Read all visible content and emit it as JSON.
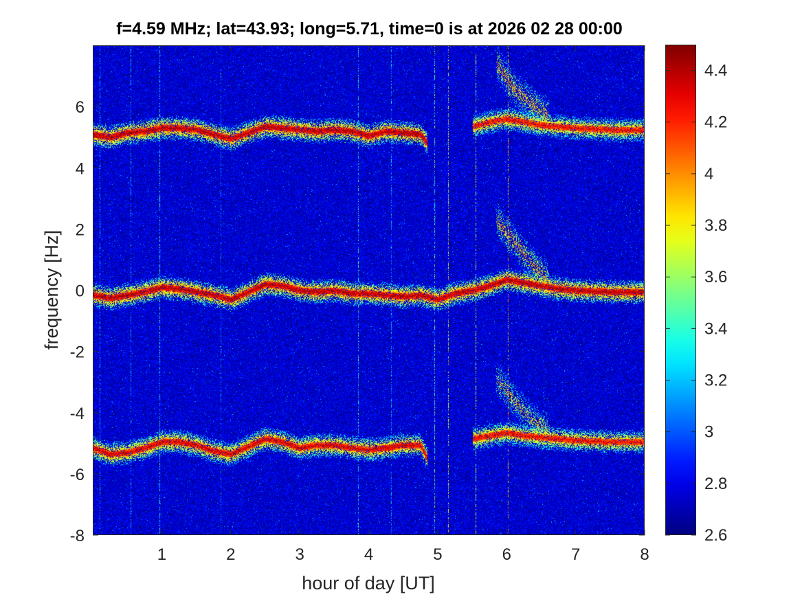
{
  "title": "f=4.59 MHz;  lat=43.93; long=5.71, time=0 is at 2026 02 28 00:00",
  "chart_data": {
    "type": "heatmap",
    "title": "f=4.59 MHz;  lat=43.93; long=5.71, time=0 is at 2026 02 28 00:00",
    "xlabel": "hour of day [UT]",
    "ylabel": "frequency [Hz]",
    "xlim": [
      0,
      8
    ],
    "ylim": [
      -8,
      8
    ],
    "xticks": [
      1,
      2,
      3,
      4,
      5,
      6,
      7,
      8
    ],
    "xtick_labels": [
      "1",
      "2",
      "3",
      "4",
      "5",
      "6",
      "7",
      "8"
    ],
    "yticks": [
      -8,
      -6,
      -4,
      -2,
      0,
      2,
      4,
      6
    ],
    "ytick_labels": [
      "-8",
      "-6",
      "-4",
      "-2",
      "0",
      "2",
      "4",
      "6"
    ],
    "colorbar": {
      "colormap": "jet",
      "clim": [
        2.6,
        4.5
      ],
      "ticks": [
        2.6,
        2.8,
        3,
        3.2,
        3.4,
        3.6,
        3.8,
        4,
        4.2,
        4.4
      ],
      "tick_labels": [
        "2.6",
        "2.8",
        "3",
        "3.2",
        "3.4",
        "3.6",
        "3.8",
        "4",
        "4.2",
        "4.4"
      ]
    },
    "background_level": 2.75,
    "traces": [
      {
        "name": "",
        "x": [
          0,
          0.25,
          0.5,
          0.75,
          1,
          1.25,
          1.5,
          1.75,
          2,
          2.25,
          2.5,
          2.75,
          3,
          3.25,
          3.5,
          3.75,
          4,
          4.25,
          4.5,
          4.75,
          4.85
        ],
        "y": [
          5.1,
          5.0,
          5.15,
          5.2,
          5.3,
          5.3,
          5.25,
          5.1,
          4.95,
          5.15,
          5.35,
          5.3,
          5.25,
          5.2,
          5.25,
          5.2,
          5.05,
          5.2,
          5.15,
          5.1,
          4.8
        ],
        "intensity": 4.4
      },
      {
        "name": "",
        "x": [
          5.5,
          5.75,
          6,
          6.25,
          6.5,
          6.75,
          7,
          7.5,
          8
        ],
        "y": [
          5.35,
          5.5,
          5.6,
          5.5,
          5.4,
          5.35,
          5.3,
          5.25,
          5.25
        ],
        "intensity": 4.3
      },
      {
        "name": "",
        "x": [
          0,
          0.25,
          0.5,
          0.75,
          1,
          1.25,
          1.5,
          1.75,
          2,
          2.25,
          2.5,
          2.75,
          3,
          3.25,
          3.5,
          3.75,
          4,
          4.25,
          4.5,
          4.75,
          5,
          5.25,
          5.5,
          5.75,
          6,
          6.25,
          6.5,
          6.75,
          7,
          7.5,
          8
        ],
        "y": [
          -0.15,
          -0.25,
          -0.15,
          -0.05,
          0.1,
          0.05,
          -0.05,
          -0.15,
          -0.3,
          -0.05,
          0.2,
          0.15,
          0.0,
          -0.05,
          0.0,
          -0.1,
          -0.1,
          -0.15,
          -0.2,
          -0.15,
          -0.3,
          -0.1,
          0.0,
          0.15,
          0.35,
          0.25,
          0.15,
          0.05,
          0.0,
          -0.05,
          -0.05
        ],
        "intensity": 4.4
      },
      {
        "name": "",
        "x": [
          0,
          0.25,
          0.5,
          0.75,
          1,
          1.25,
          1.5,
          1.75,
          2,
          2.25,
          2.5,
          2.75,
          3,
          3.25,
          3.5,
          3.75,
          4,
          4.25,
          4.5,
          4.75,
          4.85
        ],
        "y": [
          -5.15,
          -5.35,
          -5.3,
          -5.15,
          -4.95,
          -4.95,
          -5.05,
          -5.25,
          -5.35,
          -5.1,
          -4.85,
          -4.95,
          -5.15,
          -5.05,
          -5.05,
          -5.15,
          -5.2,
          -5.15,
          -5.05,
          -5.05,
          -5.5
        ],
        "intensity": 4.35
      },
      {
        "name": "",
        "x": [
          5.5,
          5.75,
          6,
          6.25,
          6.5,
          6.75,
          7,
          7.5,
          8
        ],
        "y": [
          -4.85,
          -4.75,
          -4.65,
          -4.75,
          -4.8,
          -4.85,
          -4.9,
          -4.95,
          -4.95
        ],
        "intensity": 4.3
      }
    ],
    "plumes": [
      {
        "x": [
          5.85,
          6.1,
          6.35,
          6.6
        ],
        "y": [
          7.4,
          6.6,
          6.1,
          5.7
        ],
        "intensity": 3.9
      },
      {
        "x": [
          5.85,
          6.1,
          6.35,
          6.6
        ],
        "y": [
          2.3,
          1.6,
          0.9,
          0.3
        ],
        "intensity": 3.9
      },
      {
        "x": [
          5.85,
          6.1,
          6.35,
          6.6
        ],
        "y": [
          -2.9,
          -3.6,
          -4.2,
          -4.6
        ],
        "intensity": 3.8
      }
    ],
    "vertical_streaks": [
      {
        "x": 0.1,
        "intensity": 3.4
      },
      {
        "x": 0.55,
        "intensity": 3.4
      },
      {
        "x": 0.97,
        "intensity": 3.6
      },
      {
        "x": 1.85,
        "intensity": 3.3
      },
      {
        "x": 3.85,
        "intensity": 3.6
      },
      {
        "x": 4.32,
        "intensity": 3.4
      },
      {
        "x": 4.95,
        "intensity": 3.7
      },
      {
        "x": 5.15,
        "intensity": 4.0
      },
      {
        "x": 5.55,
        "intensity": 3.9
      },
      {
        "x": 6.02,
        "intensity": 4.2
      }
    ]
  }
}
